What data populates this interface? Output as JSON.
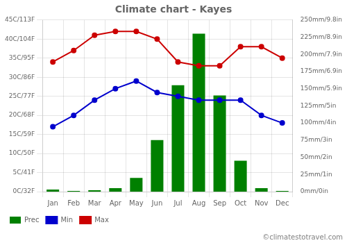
{
  "chart_data": {
    "type": "bar",
    "title": "Climate chart - Kayes",
    "categories": [
      "Jan",
      "Feb",
      "Mar",
      "Apr",
      "May",
      "Jun",
      "Jul",
      "Aug",
      "Sep",
      "Oct",
      "Nov",
      "Dec"
    ],
    "series": [
      {
        "name": "Prec",
        "type": "bar",
        "color": "#008000",
        "axis": "y2",
        "values": [
          3,
          1,
          2,
          5,
          20,
          75,
          155,
          230,
          140,
          45,
          5,
          1
        ]
      },
      {
        "name": "Min",
        "type": "line",
        "color": "#0000CD",
        "marker": "circle",
        "line_style": "solid",
        "values": [
          17,
          20,
          24,
          27,
          29,
          26,
          25,
          24,
          24,
          24,
          20,
          18
        ]
      },
      {
        "name": "Max",
        "type": "line",
        "color": "#CC0000",
        "marker": "circle",
        "line_style": "solid",
        "values": [
          34,
          37,
          41,
          42,
          42,
          40,
          34,
          33,
          33,
          38,
          38,
          35
        ]
      }
    ],
    "ylim": [
      0,
      45
    ],
    "yticks": [
      {
        "value": 0,
        "label": "0C/32F"
      },
      {
        "value": 5,
        "label": "5C/41F"
      },
      {
        "value": 10,
        "label": "10C/50F"
      },
      {
        "value": 15,
        "label": "15C/59F"
      },
      {
        "value": 20,
        "label": "20C/68F"
      },
      {
        "value": 25,
        "label": "25C/77F"
      },
      {
        "value": 30,
        "label": "30C/86F"
      },
      {
        "value": 35,
        "label": "35C/95F"
      },
      {
        "value": 40,
        "label": "40C/104F"
      },
      {
        "value": 45,
        "label": "45C/113F"
      }
    ],
    "y2lim": [
      0,
      250
    ],
    "y2ticks": [
      {
        "value": 0,
        "label": "0mm/0in"
      },
      {
        "value": 25,
        "label": "25mm/1in"
      },
      {
        "value": 50,
        "label": "50mm/2in"
      },
      {
        "value": 75,
        "label": "75mm/3in"
      },
      {
        "value": 100,
        "label": "100mm/4in"
      },
      {
        "value": 125,
        "label": "125mm/5in"
      },
      {
        "value": 150,
        "label": "150mm/5.9in"
      },
      {
        "value": 175,
        "label": "175mm/6.9in"
      },
      {
        "value": 200,
        "label": "200mm/7.9in"
      },
      {
        "value": 225,
        "label": "225mm/8.9in"
      },
      {
        "value": 250,
        "label": "250mm/9.8in"
      }
    ],
    "grid": true,
    "legend": "lower left",
    "annotations": [
      "©climatestotravel.com"
    ]
  }
}
